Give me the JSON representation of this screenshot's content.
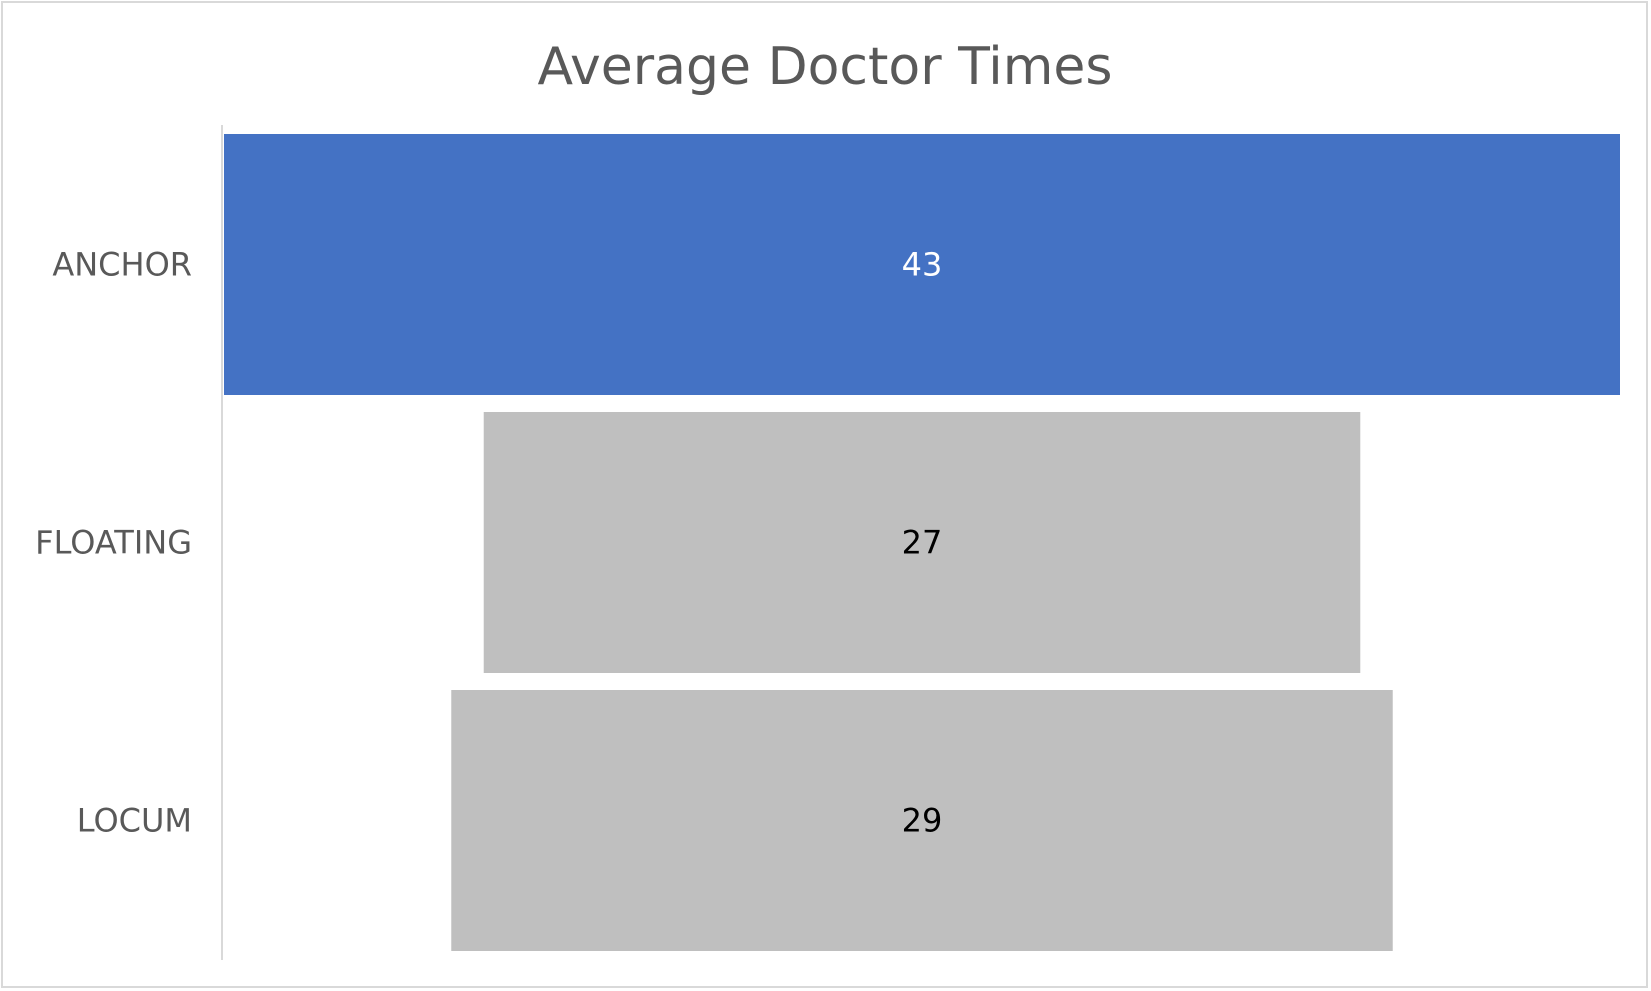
{
  "chart_data": {
    "type": "bar",
    "orientation": "horizontal-funnel",
    "title": "Average Doctor Times",
    "categories": [
      "ANCHOR",
      "FLOATING",
      "LOCUM"
    ],
    "values": [
      43,
      27,
      29
    ],
    "data_labels": [
      "43",
      "27",
      "29"
    ],
    "xlabel": "",
    "ylabel": "",
    "xlim": [
      0,
      43
    ],
    "grid": false,
    "legend": "none",
    "colors": {
      "highlight": "#4472C4",
      "default": "#BFBFBF",
      "label_on_highlight": "#FFFFFF",
      "label_on_default": "#000000",
      "text": "#595959",
      "axis": "#D9D9D9"
    }
  }
}
